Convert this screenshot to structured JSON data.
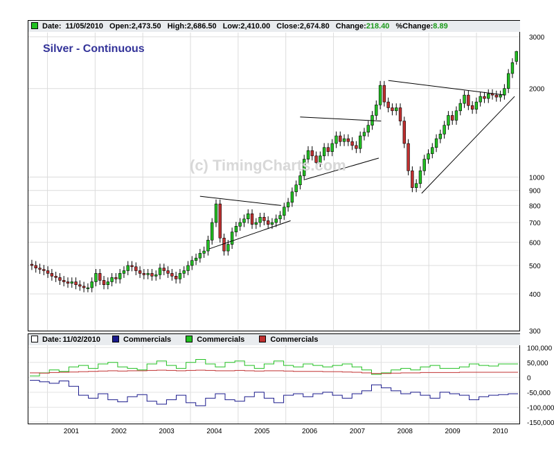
{
  "header": {
    "date_label": "Date:",
    "date": "11/05/2010",
    "open_label": "Open:",
    "open": "2,473.50",
    "high_label": "High:",
    "high": "2,686.50",
    "low_label": "Low:",
    "low": "2,410.00",
    "close_label": "Close:",
    "close": "2,674.80",
    "change_label": "Change:",
    "change": "218.40",
    "pct_label": "%Change:",
    "pct": "8.89"
  },
  "lower_header": {
    "date_label": "Date:",
    "date": "11/02/2010",
    "legend": [
      {
        "name": "Commercials",
        "color": "#1a1a8c"
      },
      {
        "name": "Commercials",
        "color": "#22c022"
      },
      {
        "name": "Commercials",
        "color": "#c03030"
      }
    ]
  },
  "title": "Silver - Continuous",
  "watermark": "(c) TimingCharts.com",
  "colors": {
    "up": "#22c022",
    "down": "#c03030",
    "blue": "#1a1a8c",
    "green": "#22c022",
    "red": "#c03030",
    "header_bg": "#e9ecef"
  },
  "chart_data": [
    {
      "type": "candlestick",
      "scale": "log",
      "title": "Silver - Continuous",
      "ylim": [
        300,
        3100
      ],
      "xlim": [
        2000.6,
        2010.9
      ],
      "y_ticks": [
        "3000",
        "2000",
        "1000",
        "900",
        "800",
        "700",
        "600",
        "500",
        "400",
        "300"
      ],
      "y_tick_values": [
        3000,
        2000,
        1000,
        900,
        800,
        700,
        600,
        500,
        400,
        300
      ],
      "x_ticks": [
        "2001",
        "2002",
        "2003",
        "2004",
        "2005",
        "2006",
        "2007",
        "2008",
        "2009",
        "2010"
      ],
      "grid": true,
      "last_bar": {
        "date": "11/05/2010",
        "open": 2473.5,
        "high": 2686.5,
        "low": 2410.0,
        "close": 2674.8
      },
      "closes": [
        500,
        490,
        485,
        480,
        470,
        460,
        455,
        445,
        440,
        435,
        440,
        430,
        425,
        420,
        420,
        440,
        470,
        445,
        430,
        440,
        455,
        450,
        470,
        480,
        500,
        495,
        480,
        470,
        465,
        470,
        460,
        465,
        490,
        480,
        470,
        460,
        450,
        470,
        480,
        500,
        520,
        530,
        550,
        560,
        610,
        700,
        810,
        620,
        560,
        590,
        650,
        680,
        700,
        720,
        750,
        690,
        700,
        730,
        710,
        690,
        700,
        720,
        740,
        790,
        820,
        890,
        940,
        1010,
        1150,
        1230,
        1180,
        1120,
        1180,
        1260,
        1220,
        1300,
        1380,
        1320,
        1350,
        1320,
        1280,
        1250,
        1380,
        1420,
        1500,
        1620,
        1760,
        2050,
        1800,
        1720,
        1680,
        1720,
        1550,
        1300,
        1050,
        920,
        950,
        1050,
        1150,
        1200,
        1260,
        1350,
        1400,
        1500,
        1620,
        1560,
        1680,
        1780,
        1900,
        1750,
        1700,
        1800,
        1880,
        1850,
        1920,
        1900,
        1870,
        1900,
        2000,
        2250,
        2450,
        2675
      ],
      "trendlines": [
        {
          "points": [
            [
              2004.2,
              860
            ],
            [
              2005.9,
              800
            ]
          ]
        },
        {
          "points": [
            [
              2004.4,
              570
            ],
            [
              2006.1,
              710
            ]
          ]
        },
        {
          "points": [
            [
              2006.3,
              1600
            ],
            [
              2008.0,
              1550
            ]
          ]
        },
        {
          "points": [
            [
              2006.4,
              980
            ],
            [
              2007.95,
              1160
            ]
          ]
        },
        {
          "points": [
            [
              2008.15,
              2130
            ],
            [
              2010.6,
              1900
            ]
          ]
        },
        {
          "points": [
            [
              2008.85,
              880
            ],
            [
              2010.8,
              1880
            ]
          ]
        }
      ]
    },
    {
      "type": "line",
      "title": "Commercials",
      "ylim": [
        -155000,
        110000
      ],
      "y_ticks": [
        "100,000",
        "50,000",
        "0",
        "-50,000",
        "-100,000",
        "-150,000"
      ],
      "y_tick_values": [
        100000,
        50000,
        0,
        -50000,
        -100000,
        -150000
      ],
      "series": [
        {
          "name": "Commercials",
          "color": "#1a1a8c",
          "values": [
            -10000,
            -15000,
            -20000,
            -12000,
            -30000,
            -60000,
            -70000,
            -55000,
            -75000,
            -82000,
            -65000,
            -58000,
            -80000,
            -90000,
            -75000,
            -60000,
            -85000,
            -95000,
            -70000,
            -55000,
            -75000,
            -80000,
            -65000,
            -50000,
            -70000,
            -85000,
            -60000,
            -55000,
            -65000,
            -55000,
            -50000,
            -60000,
            -70000,
            -55000,
            -45000,
            -25000,
            -35000,
            -45000,
            -55000,
            -50000,
            -60000,
            -70000,
            -50000,
            -55000,
            -60000,
            -75000,
            -65000,
            -60000,
            -58000,
            -55000
          ]
        },
        {
          "name": "Commercials",
          "color": "#22c022",
          "values": [
            5000,
            15000,
            25000,
            20000,
            35000,
            40000,
            30000,
            45000,
            50000,
            35000,
            30000,
            25000,
            45000,
            55000,
            40000,
            30000,
            50000,
            60000,
            45000,
            35000,
            50000,
            55000,
            40000,
            30000,
            45000,
            55000,
            40000,
            35000,
            45000,
            40000,
            35000,
            40000,
            45000,
            35000,
            25000,
            10000,
            15000,
            25000,
            30000,
            25000,
            35000,
            40000,
            30000,
            30000,
            35000,
            45000,
            40000,
            38000,
            45000,
            45000
          ]
        },
        {
          "name": "Commercials",
          "color": "#c03030",
          "values": [
            15000,
            14000,
            16000,
            17000,
            18000,
            19000,
            20000,
            21000,
            22000,
            21000,
            22000,
            22000,
            23000,
            24000,
            23000,
            22000,
            23000,
            24000,
            23000,
            22000,
            22000,
            23000,
            22000,
            21000,
            22000,
            22000,
            21000,
            20000,
            20000,
            20000,
            19000,
            19000,
            18000,
            17000,
            15000,
            13000,
            13000,
            14000,
            15000,
            15000,
            16000,
            16000,
            16000,
            16000,
            17000,
            17000,
            17000,
            17000,
            17000,
            17000
          ]
        }
      ]
    }
  ]
}
